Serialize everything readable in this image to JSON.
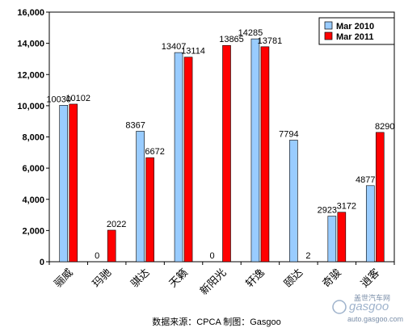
{
  "chart_data": {
    "type": "bar",
    "categories": [
      "骊威",
      "玛驰",
      "骐达",
      "天籁",
      "新阳光",
      "轩逸",
      "颐达",
      "奇骏",
      "逍客"
    ],
    "series": [
      {
        "name": "Mar 2010",
        "color": "#99ccff",
        "values": [
          10030,
          0,
          8367,
          13407,
          0,
          14285,
          7794,
          2923,
          4877
        ]
      },
      {
        "name": "Mar 2011",
        "color": "#ff0000",
        "values": [
          10102,
          2022,
          6672,
          13114,
          13865,
          13781,
          2,
          3172,
          8290
        ]
      }
    ],
    "data_labels": [
      [
        "10030",
        "0",
        "8367",
        "13407",
        "0",
        "14285",
        "7794",
        "2923",
        "4877"
      ],
      [
        "10102",
        "2022",
        "6672",
        "13114",
        "13865",
        "13781",
        "2",
        "3172",
        "8290"
      ]
    ],
    "yticks": [
      "0",
      "2,000",
      "4,000",
      "6,000",
      "8,000",
      "10,000",
      "12,000",
      "14,000",
      "16,000"
    ],
    "ylim": [
      0,
      16000
    ],
    "legend_position": "top-right",
    "grid": false
  },
  "source_note": "数据来源：CPCA  制图：Gasgoo",
  "watermark": {
    "brand": "gasgoo",
    "sub": "盖世汽车网",
    "url": "auto.gasgoo.com"
  }
}
